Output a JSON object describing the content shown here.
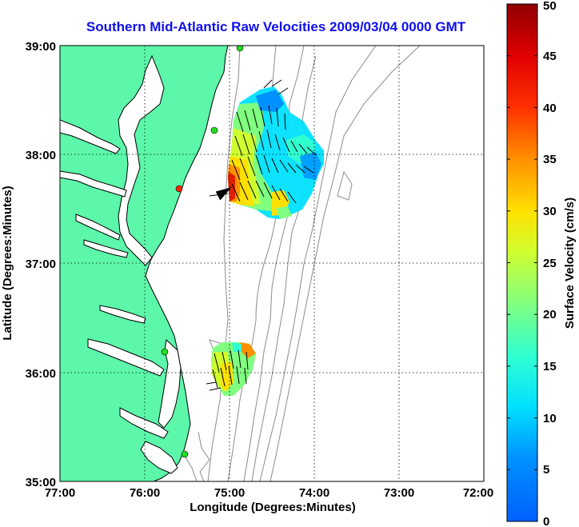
{
  "map": {
    "title": "Southern Mid-Atlantic Raw Velocities 2009/03/04 0000 GMT",
    "xlabel": "Longitude (Degrees:Minutes)",
    "ylabel": "Latitude (Degrees:Minutes)",
    "x_ticks": [
      "77:00",
      "76:00",
      "75:00",
      "74:00",
      "73:00",
      "72:00"
    ],
    "y_ticks": [
      "39:00",
      "38:00",
      "37:00",
      "36:00",
      "35:00"
    ],
    "colors": {
      "land": "#5cf7aa",
      "ocean": "#ffffff",
      "coast": "#000000",
      "contour": "#8c8c8c",
      "grid": "#000000",
      "title": "#1010ee",
      "station_active": "#22dd22",
      "station_alert": "#ff2200"
    }
  },
  "colorbar": {
    "label": "Surface Velocity (cm/s)",
    "ticks": [
      "0",
      "5",
      "10",
      "15",
      "20",
      "25",
      "30",
      "35",
      "40",
      "45",
      "50"
    ],
    "range": [
      0,
      50
    ],
    "colormap": "jet"
  }
}
